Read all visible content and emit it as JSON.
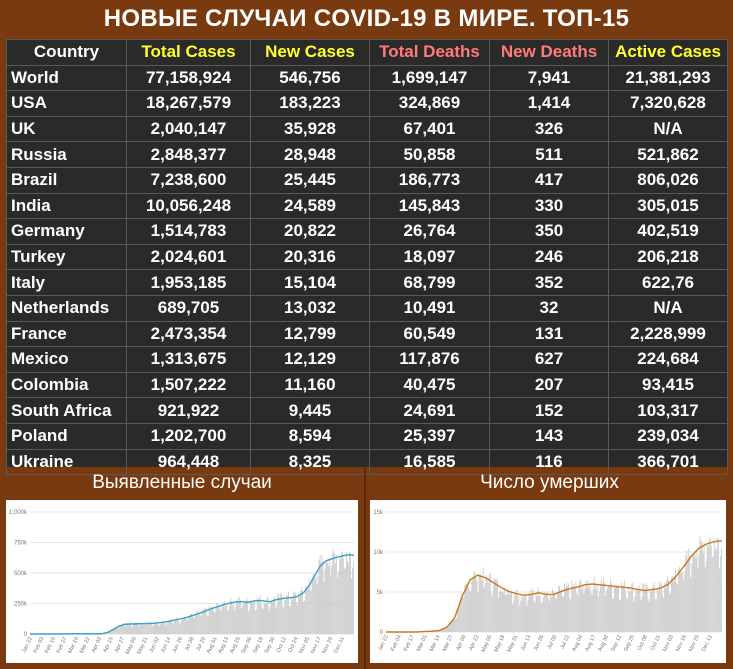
{
  "title": "НОВЫЕ СЛУЧАИ COVID-19 В МИРЕ. ТОП-15",
  "colors": {
    "country": "#ffffff",
    "total_cases": "#ffff33",
    "new_cases": "#ffff33",
    "total_deaths": "#ff7a7a",
    "new_deaths": "#ff7a7a",
    "active_cases": "#ffff33",
    "bars": "#c8c8c8",
    "cases_line": "#3aa0c8",
    "deaths_line": "#c87a1a"
  },
  "chart_data": [
    {
      "type": "table",
      "columns": [
        "Country",
        "Total Cases",
        "New Cases",
        "Total Deaths",
        "New Deaths",
        "Active Cases"
      ],
      "rows": [
        [
          "World",
          "77,158,924",
          "546,756",
          "1,699,147",
          "7,941",
          "21,381,293"
        ],
        [
          "USA",
          "18,267,579",
          "183,223",
          "324,869",
          "1,414",
          "7,320,628"
        ],
        [
          "UK",
          "2,040,147",
          "35,928",
          "67,401",
          "326",
          "N/A"
        ],
        [
          "Russia",
          "2,848,377",
          "28,948",
          "50,858",
          "511",
          "521,862"
        ],
        [
          "Brazil",
          "7,238,600",
          "25,445",
          "186,773",
          "417",
          "806,026"
        ],
        [
          "India",
          "10,056,248",
          "24,589",
          "145,843",
          "330",
          "305,015"
        ],
        [
          "Germany",
          "1,514,783",
          "20,822",
          "26,764",
          "350",
          "402,519"
        ],
        [
          "Turkey",
          "2,024,601",
          "20,316",
          "18,097",
          "246",
          "206,218"
        ],
        [
          "Italy",
          "1,953,185",
          "15,104",
          "68,799",
          "352",
          "622,76"
        ],
        [
          "Netherlands",
          "689,705",
          "13,032",
          "10,491",
          "32",
          "N/A"
        ],
        [
          "France",
          "2,473,354",
          "12,799",
          "60,549",
          "131",
          "2,228,999"
        ],
        [
          "Mexico",
          "1,313,675",
          "12,129",
          "117,876",
          "627",
          "224,684"
        ],
        [
          "Colombia",
          "1,507,222",
          "11,160",
          "40,475",
          "207",
          "93,415"
        ],
        [
          "South Africa",
          "921,922",
          "9,445",
          "24,691",
          "152",
          "103,317"
        ],
        [
          "Poland",
          "1,202,700",
          "8,594",
          "25,397",
          "143",
          "239,034"
        ],
        [
          "Ukraine",
          "964,448",
          "8,325",
          "16,585",
          "116",
          "366,701"
        ]
      ]
    },
    {
      "type": "bar",
      "title": "Выявленные случаи",
      "ylim": [
        0,
        1000000
      ],
      "yticks": [
        "0",
        "250k",
        "500k",
        "750k",
        "1,000k"
      ],
      "ytick_values": [
        0,
        250000,
        500000,
        750000,
        1000000
      ],
      "xticks": [
        "Jan 22",
        "Feb 03",
        "Feb 15",
        "Feb 27",
        "Mar 10",
        "Mar 22",
        "Apr 03",
        "Apr 15",
        "Apr 27",
        "May 09",
        "May 21",
        "Jun 02",
        "Jun 14",
        "Jun 26",
        "Jul 08",
        "Jul 20",
        "Aug 01",
        "Aug 13",
        "Aug 25",
        "Sep 06",
        "Sep 18",
        "Sep 30",
        "Oct 12",
        "Oct 24",
        "Nov 05",
        "Nov 17",
        "Nov 29",
        "Dec 11"
      ],
      "series": [
        {
          "kind": "line",
          "values": [
            0,
            0,
            0,
            0,
            0,
            0,
            0,
            1000,
            2000,
            2000,
            2000,
            2000,
            2000,
            3000,
            15000,
            40000,
            65000,
            80000,
            82000,
            83000,
            85000,
            86000,
            88000,
            92000,
            98000,
            105000,
            115000,
            125000,
            135000,
            150000,
            165000,
            180000,
            200000,
            215000,
            230000,
            245000,
            255000,
            265000,
            265000,
            260000,
            270000,
            275000,
            270000,
            265000,
            280000,
            290000,
            295000,
            300000,
            310000,
            340000,
            400000,
            480000,
            560000,
            600000,
            615000,
            630000,
            640000,
            650000,
            645000
          ]
        }
      ]
    },
    {
      "type": "bar",
      "title": "Число умерших",
      "ylim": [
        0,
        15000
      ],
      "yticks": [
        "0",
        "5k",
        "10k",
        "15k"
      ],
      "ytick_values": [
        0,
        5000,
        10000,
        15000
      ],
      "xticks": [
        "Jan 22",
        "Feb 04",
        "Feb 17",
        "Mar 01",
        "Mar 14",
        "Mar 27",
        "Apr 09",
        "Apr 22",
        "May 05",
        "May 18",
        "May 31",
        "Jun 13",
        "Jun 26",
        "Jul 09",
        "Jul 22",
        "Aug 04",
        "Aug 17",
        "Aug 30",
        "Sep 12",
        "Sep 25",
        "Oct 08",
        "Oct 21",
        "Nov 03",
        "Nov 16",
        "Nov 29",
        "Dec 12"
      ],
      "series": [
        {
          "kind": "line",
          "values": [
            0,
            0,
            0,
            0,
            0,
            50,
            100,
            200,
            600,
            1800,
            4500,
            6500,
            7100,
            6800,
            6200,
            5600,
            5100,
            4800,
            4600,
            4700,
            4900,
            4700,
            4700,
            5100,
            5400,
            5600,
            5900,
            6000,
            5900,
            5800,
            5700,
            5600,
            5500,
            5300,
            5200,
            5300,
            5500,
            6000,
            7000,
            8200,
            9500,
            10500,
            11000,
            11300,
            11400
          ]
        }
      ]
    }
  ]
}
